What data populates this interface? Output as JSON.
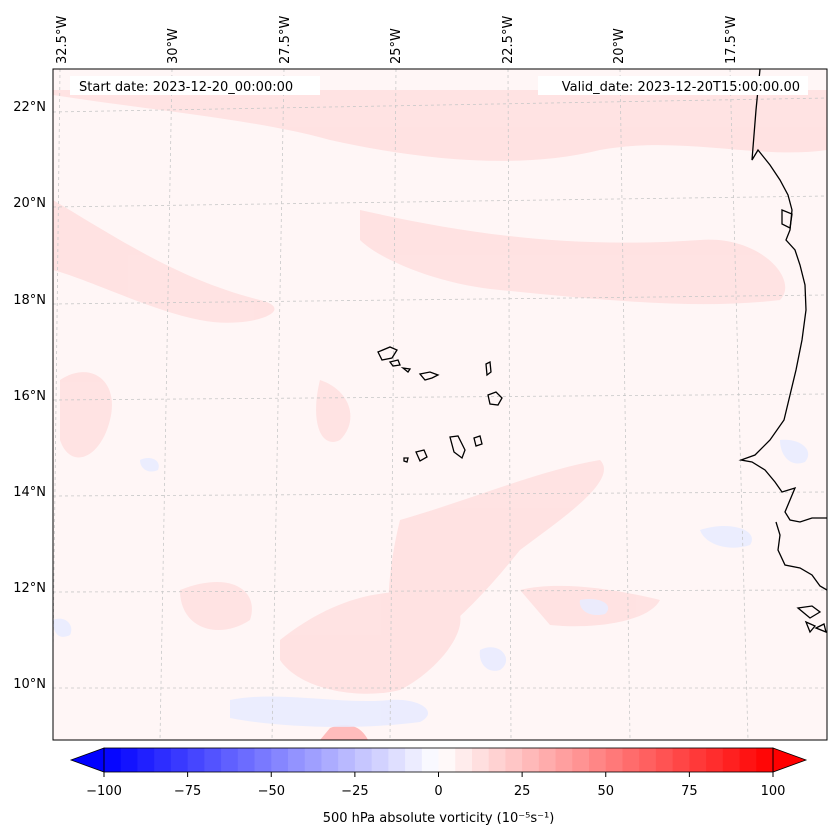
{
  "header": {
    "start_date": "Start date: 2023-12-20_00:00:00",
    "valid_date": "Valid_date: 2023-12-20T15:00:00.00"
  },
  "axes": {
    "lon_labels": [
      "32.5°W",
      "30°W",
      "27.5°W",
      "25°W",
      "22.5°W",
      "20°W",
      "17.5°W"
    ],
    "lat_labels": [
      "22°N",
      "20°N",
      "18°N",
      "16°N",
      "14°N",
      "12°N",
      "10°N"
    ]
  },
  "colorbar": {
    "ticks": [
      "−100",
      "−75",
      "−50",
      "−25",
      "0",
      "25",
      "50",
      "75",
      "100"
    ],
    "label": "500 hPa absolute vorticity (10⁻⁵s⁻¹)",
    "min_color": "#0000ff",
    "mid_color": "#ffffff",
    "max_color": "#ff0000"
  },
  "colors": {
    "background_field": "#fff6f6",
    "positive_field": "#ffdcdc",
    "negative_field": "#eef0ff",
    "coastline": "#000000",
    "gridline": "#c8c8c8"
  }
}
